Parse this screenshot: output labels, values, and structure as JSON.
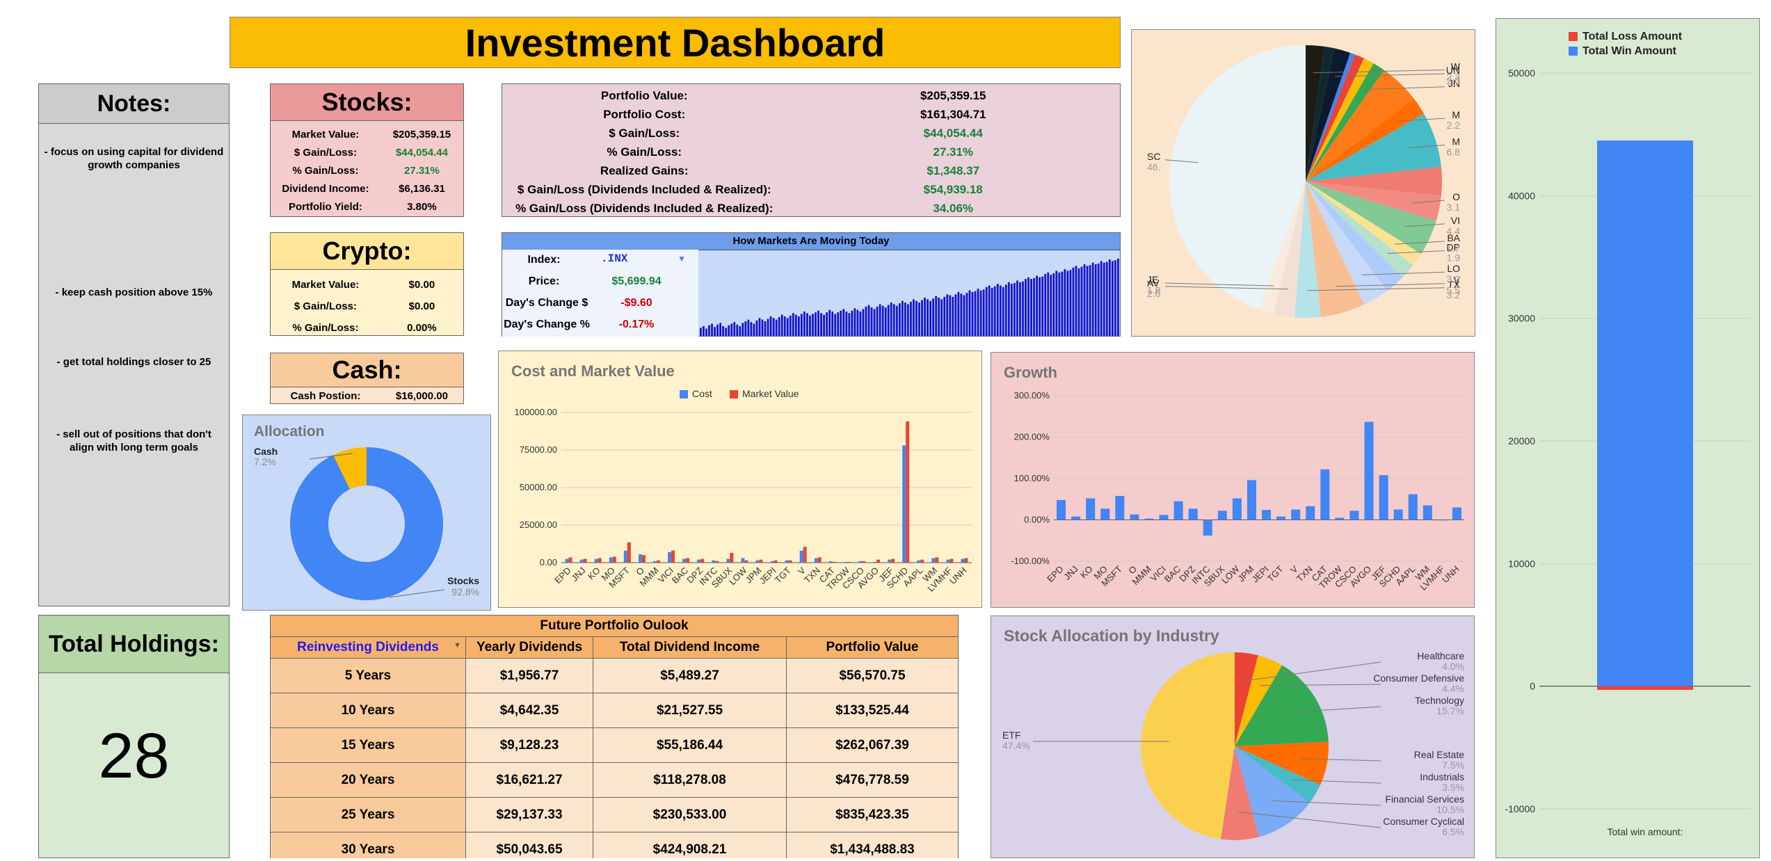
{
  "title": "Investment Dashboard",
  "notes": {
    "heading": "Notes:",
    "items": [
      "- focus on using capital for dividend growth companies",
      "- keep cash position above 15%",
      "- get total holdings closer to 25",
      "- sell out of positions that don't align with long term goals"
    ]
  },
  "total_holdings": {
    "heading": "Total Holdings:",
    "value": "28"
  },
  "stocks": {
    "heading": "Stocks:",
    "rows": [
      {
        "label": "Market Value:",
        "value": "$205,359.15",
        "tone": "black"
      },
      {
        "label": "$ Gain/Loss:",
        "value": "$44,054.44",
        "tone": "green"
      },
      {
        "label": "% Gain/Loss:",
        "value": "27.31%",
        "tone": "green"
      },
      {
        "label": "Dividend Income:",
        "value": "$6,136.31",
        "tone": "black"
      },
      {
        "label": "Portfolio Yield:",
        "value": "3.80%",
        "tone": "black"
      }
    ]
  },
  "crypto": {
    "heading": "Crypto:",
    "rows": [
      {
        "label": "Market Value:",
        "value": "$0.00",
        "tone": "black"
      },
      {
        "label": "$ Gain/Loss:",
        "value": "$0.00",
        "tone": "black"
      },
      {
        "label": "% Gain/Loss:",
        "value": "0.00%",
        "tone": "black"
      }
    ]
  },
  "cash": {
    "heading": "Cash:",
    "label": "Cash Postion:",
    "value": "$16,000.00"
  },
  "portfolio": {
    "rows": [
      {
        "label": "Portfolio Value:",
        "value": "$205,359.15",
        "tone": "black"
      },
      {
        "label": "Portfolio Cost:",
        "value": "$161,304.71",
        "tone": "black"
      },
      {
        "label": "$ Gain/Loss:",
        "value": "$44,054.44",
        "tone": "green"
      },
      {
        "label": "% Gain/Loss:",
        "value": "27.31%",
        "tone": "green"
      },
      {
        "label": "Realized Gains:",
        "value": "$1,348.37",
        "tone": "green"
      },
      {
        "label": "$ Gain/Loss (Dividends Included & Realized):",
        "value": "$54,939.18",
        "tone": "green"
      },
      {
        "label": "% Gain/Loss (Dividends Included & Realized):",
        "value": "34.06%",
        "tone": "green"
      }
    ]
  },
  "markets": {
    "heading": "How Markets Are Moving Today",
    "index_label": "Index:",
    "index_value": ".INX",
    "price_label": "Price:",
    "price_value": "$5,699.94",
    "change_label": "Day's Change $",
    "change_value": "-$9.60",
    "pct_label": "Day's Change %",
    "pct_value": "-0.17%"
  },
  "future": {
    "heading": "Future Portfolio Oulook",
    "selector": "Reinvesting Dividends",
    "columns": [
      "Yearly Dividends",
      "Total Dividend Income",
      "Portfolio Value"
    ],
    "rows": [
      {
        "period": "5 Years",
        "yearly": "$1,956.77",
        "total": "$5,489.27",
        "value": "$56,570.75"
      },
      {
        "period": "10 Years",
        "yearly": "$4,642.35",
        "total": "$21,527.55",
        "value": "$133,525.44"
      },
      {
        "period": "15 Years",
        "yearly": "$9,128.23",
        "total": "$55,186.44",
        "value": "$262,067.39"
      },
      {
        "period": "20 Years",
        "yearly": "$16,621.27",
        "total": "$118,278.08",
        "value": "$476,778.59"
      },
      {
        "period": "25 Years",
        "yearly": "$29,137.33",
        "total": "$230,533.00",
        "value": "$835,423.35"
      },
      {
        "period": "30 Years",
        "yearly": "$50,043.65",
        "total": "$424,908.21",
        "value": "$1,434,488.83"
      }
    ]
  },
  "colors": {
    "blue": "#4285f4",
    "red": "#ea4335",
    "yellow": "#fbbc04",
    "green": "#34a853",
    "orange": "#ff6d01",
    "teal": "#46bdc6"
  },
  "chart_data": [
    {
      "type": "pie",
      "title": "Allocation",
      "donut": true,
      "slices": [
        {
          "label": "Stocks",
          "value": 92.8,
          "pct_text": "92.8%",
          "color": "#4285f4"
        },
        {
          "label": "Cash",
          "value": 7.2,
          "pct_text": "7.2%",
          "color": "#fbbc04"
        }
      ]
    },
    {
      "type": "line",
      "title": "How Markets Are Moving Today",
      "note": "Intraday sparkline of the index price; values estimated, relative scale",
      "values": [
        10,
        12,
        9,
        13,
        15,
        11,
        14,
        16,
        12,
        10,
        13,
        15,
        17,
        14,
        12,
        16,
        18,
        20,
        17,
        15,
        19,
        22,
        20,
        18,
        21,
        24,
        22,
        20,
        23,
        26,
        24,
        22,
        25,
        28,
        26,
        24,
        27,
        30,
        28,
        25,
        27,
        29,
        31,
        28,
        26,
        29,
        32,
        30,
        27,
        29,
        31,
        33,
        30,
        28,
        31,
        34,
        32,
        30,
        33,
        36,
        38,
        35,
        33,
        36,
        39,
        37,
        35,
        38,
        41,
        39,
        37,
        40,
        43,
        41,
        39,
        42,
        45,
        43,
        41,
        44,
        47,
        45,
        43,
        46,
        49,
        47,
        45,
        48,
        51,
        50,
        48,
        51,
        54,
        52,
        50,
        53,
        56,
        54,
        55,
        58,
        56,
        57,
        60,
        62,
        59,
        61,
        64,
        62,
        60,
        63,
        66,
        64,
        65,
        68,
        66,
        67,
        70,
        72,
        70,
        71,
        74,
        72,
        73,
        76,
        78,
        75,
        77,
        80,
        78,
        79,
        82,
        80,
        81,
        84,
        86,
        83,
        85,
        88,
        86,
        87,
        90,
        88,
        89,
        92,
        90,
        91,
        94,
        92,
        93,
        95
      ],
      "ylim": [
        0,
        100
      ]
    },
    {
      "type": "bar",
      "title": "Cost and Market Value",
      "categories": [
        "EPD",
        "JNJ",
        "KO",
        "MO",
        "MSFT",
        "O",
        "MMM",
        "VICI",
        "BAC",
        "DPZ",
        "INTC",
        "SBUX",
        "LOW",
        "JPM",
        "JEPI",
        "TGT",
        "V",
        "TXN",
        "CAT",
        "TROW",
        "CSCO",
        "AVGO",
        "JEF",
        "SCHD",
        "AAPL",
        "WM",
        "LVMHF",
        "UNH"
      ],
      "series": [
        {
          "name": "Cost",
          "color": "#4285f4",
          "values": [
            2500,
            2000,
            2500,
            3500,
            8000,
            5500,
            1000,
            7000,
            2500,
            2000,
            1500,
            2500,
            3000,
            1500,
            1000,
            1500,
            8000,
            3000,
            1000,
            500,
            1000,
            500,
            2000,
            78000,
            1500,
            3000,
            2000,
            2500
          ]
        },
        {
          "name": "Market Value",
          "color": "#ea4335",
          "values": [
            3500,
            2500,
            3000,
            4000,
            13500,
            5000,
            1500,
            8000,
            3000,
            2500,
            1000,
            6500,
            1500,
            2000,
            1500,
            1500,
            10500,
            3500,
            500,
            500,
            1000,
            2000,
            2500,
            94000,
            2000,
            3500,
            2500,
            3000
          ]
        }
      ],
      "yticks": [
        "0.00",
        "25000.00",
        "50000.00",
        "75000.00",
        "100000.00"
      ],
      "ylim": [
        0,
        100000
      ]
    },
    {
      "type": "bar",
      "title": "Growth",
      "categories": [
        "EPD",
        "JNJ",
        "KO",
        "MO",
        "MSFT",
        "O",
        "MMM",
        "VICI",
        "BAC",
        "DPZ",
        "INTC",
        "SBUX",
        "LOW",
        "JPM",
        "JEPI",
        "TGT",
        "V",
        "TXN",
        "CAT",
        "TROW",
        "CSCO",
        "AVGO",
        "JEF",
        "SCHD",
        "AAPL",
        "WM",
        "LVMHF",
        "UNH"
      ],
      "series": [
        {
          "name": "Growth",
          "color": "#4285f4",
          "values": [
            48,
            8,
            52,
            27,
            58,
            13,
            3,
            12,
            45,
            27,
            -38,
            22,
            52,
            96,
            24,
            8,
            25,
            33,
            122,
            5,
            22,
            237,
            108,
            25,
            62,
            35,
            0,
            30
          ]
        }
      ],
      "yticks": [
        "-100.00%",
        "0.00%",
        "100.00%",
        "200.00%",
        "300.00%"
      ],
      "ylim": [
        -100,
        300
      ]
    },
    {
      "type": "pie",
      "title": "",
      "note": "Holdings by ticker; labels partially visible",
      "slices": [
        {
          "label": "SC",
          "value": 46,
          "pct_text": "46.",
          "color": "#eaf3f6"
        },
        {
          "label": "JE",
          "value": 1.8,
          "pct_text": "1.8",
          "color": "#f9ecde"
        },
        {
          "label": "AV",
          "value": 2.6,
          "pct_text": "2.6",
          "color": "#f3e0d4"
        },
        {
          "label": "TX",
          "value": 3.2,
          "pct_text": "3.2",
          "color": "#b4e3e8"
        },
        {
          "label": "V",
          "value": 5.5,
          "pct_text": "5.5",
          "color": "#f9bf94"
        },
        {
          "label": "LO",
          "value": 3.2,
          "pct_text": "3.2",
          "color": "#c6d9f9"
        },
        {
          "label": "",
          "value": 2.5,
          "pct_text": "",
          "color": "#aecbfa"
        },
        {
          "label": "DP",
          "value": 1.9,
          "pct_text": "1.9",
          "color": "#b7e1cd"
        },
        {
          "label": "BA",
          "value": 1.7,
          "pct_text": "1.7",
          "color": "#fde293"
        },
        {
          "label": "VI",
          "value": 4.4,
          "pct_text": "4.4",
          "color": "#81c995"
        },
        {
          "label": "O",
          "value": 3.1,
          "pct_text": "3.1",
          "color": "#f28b82"
        },
        {
          "label": "",
          "value": 3.5,
          "pct_text": "",
          "color": "#f07b72"
        },
        {
          "label": "M",
          "value": 6.8,
          "pct_text": "6.8",
          "color": "#46bdc6"
        },
        {
          "label": "M",
          "value": 2.2,
          "pct_text": "2.2",
          "color": "#ff6d01"
        },
        {
          "label": "",
          "value": 5.0,
          "pct_text": "",
          "color": "#ff7b1a"
        },
        {
          "label": "JN",
          "value": 1.5,
          "pct_text": "",
          "color": "#34a853"
        },
        {
          "label": "",
          "value": 1.3,
          "pct_text": "",
          "color": "#fbbc04"
        },
        {
          "label": "",
          "value": 1.2,
          "pct_text": "",
          "color": "#ea4335"
        },
        {
          "label": "",
          "value": 0.6,
          "pct_text": "",
          "color": "#4285f4"
        },
        {
          "label": "UN",
          "value": 2.0,
          "pct_text": "2.0",
          "color": "#0b1a2e"
        },
        {
          "label": "",
          "value": 1.2,
          "pct_text": "",
          "color": "#0f2a2e"
        },
        {
          "label": "W",
          "value": 2.3,
          "pct_text": "2.3",
          "color": "#1e1a14"
        }
      ]
    },
    {
      "type": "bar",
      "title": "",
      "categories": [
        "Total win amount:"
      ],
      "series": [
        {
          "name": "Total Loss Amount",
          "color": "#ea4335",
          "values": [
            -300
          ]
        },
        {
          "name": "Total Win Amount",
          "color": "#4285f4",
          "values": [
            44500
          ]
        }
      ],
      "yticks": [
        "-10000",
        "0",
        "10000",
        "20000",
        "30000",
        "40000",
        "50000"
      ],
      "ylim": [
        -10000,
        50000
      ],
      "legend": "top"
    },
    {
      "type": "pie",
      "title": "Stock Allocation by Industry",
      "slices": [
        {
          "label": "Healthcare",
          "value": 4.0,
          "pct_text": "4.0%",
          "color": "#ea4335"
        },
        {
          "label": "Consumer Defensive",
          "value": 4.4,
          "pct_text": "4.4%",
          "color": "#fbbc04"
        },
        {
          "label": "Technology",
          "value": 15.7,
          "pct_text": "15.7%",
          "color": "#34a853"
        },
        {
          "label": "Real Estate",
          "value": 7.5,
          "pct_text": "7.5%",
          "color": "#ff6d01"
        },
        {
          "label": "Industrials",
          "value": 3.5,
          "pct_text": "3.5%",
          "color": "#46bdc6"
        },
        {
          "label": "Financial Services",
          "value": 10.5,
          "pct_text": "10.5%",
          "color": "#7baaf7"
        },
        {
          "label": "Consumer Cyclical",
          "value": 6.5,
          "pct_text": "6.5%",
          "color": "#f07b72"
        },
        {
          "label": "ETF",
          "value": 47.4,
          "pct_text": "47.4%",
          "color": "#fcd04f"
        }
      ]
    }
  ]
}
